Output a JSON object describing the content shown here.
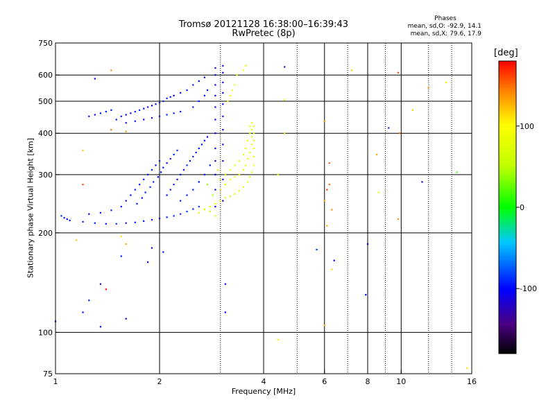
{
  "header": {
    "title": "Tromsø 20121128 16:38:00–16:39:43",
    "subtitle": "RwPretec (8p)",
    "stats_heading": "Phases",
    "stats_o": "mean, sd,O: -92.9, 14.1",
    "stats_x": "mean, sd,X:  79.6, 17.9"
  },
  "colorbar": {
    "unit": "[deg]",
    "range": [
      -180,
      180
    ],
    "ticks": [
      100,
      0,
      -100
    ],
    "tick_labels": [
      "100",
      "0",
      "-100"
    ]
  },
  "chart_data": {
    "type": "scatter",
    "title": "Tromsø 20121128 16:38:00–16:39:43",
    "subtitle": "RwPretec (8p)",
    "xlabel": "Frequency [MHz]",
    "ylabel": "Stationary phase Virtual Height [km]",
    "x_scale": "log",
    "y_scale": "log",
    "xlim": [
      1,
      16
    ],
    "ylim": [
      75,
      750
    ],
    "x_ticks": [
      1,
      2,
      4,
      6,
      8,
      10,
      16
    ],
    "x_tick_labels": [
      "1",
      "2",
      "4",
      "6",
      "8",
      "10",
      "16"
    ],
    "x_grid": [
      1,
      2,
      4,
      6,
      8,
      10,
      16
    ],
    "x_minor": [
      3,
      5,
      7,
      9,
      12,
      14
    ],
    "y_ticks": [
      75,
      100,
      200,
      300,
      400,
      500,
      600,
      750
    ],
    "y_tick_labels": [
      "75",
      "100",
      "200",
      "300",
      "400",
      "500",
      "600",
      "750"
    ],
    "y_grid": [
      100,
      200,
      300,
      400,
      500,
      600
    ],
    "grid": true,
    "color_encoding": "phase [deg], rainbow colour scale -180 to 180",
    "series": [
      {
        "mode": "O",
        "points": [
          [
            1.04,
            225,
            -95
          ],
          [
            1.06,
            222,
            -95
          ],
          [
            1.08,
            220,
            -100
          ],
          [
            1.1,
            218,
            -95
          ],
          [
            1.2,
            216,
            -95
          ],
          [
            1.3,
            214,
            -95
          ],
          [
            1.4,
            213,
            -95
          ],
          [
            1.5,
            213,
            -90
          ],
          [
            1.6,
            214,
            -95
          ],
          [
            1.7,
            215,
            -95
          ],
          [
            1.8,
            217,
            -95
          ],
          [
            1.9,
            219,
            -95
          ],
          [
            2.0,
            221,
            -95
          ],
          [
            2.1,
            223,
            -95
          ],
          [
            2.2,
            225,
            -90
          ],
          [
            2.3,
            228,
            -90
          ],
          [
            2.4,
            232,
            -85
          ],
          [
            2.5,
            236,
            -90
          ],
          [
            2.6,
            240,
            -85
          ],
          [
            1.25,
            228,
            -100
          ],
          [
            1.35,
            230,
            -95
          ],
          [
            1.45,
            234,
            -90
          ],
          [
            1.55,
            240,
            -95
          ],
          [
            1.6,
            250,
            -100
          ],
          [
            1.65,
            260,
            -95
          ],
          [
            1.7,
            270,
            -95
          ],
          [
            1.75,
            280,
            -100
          ],
          [
            1.8,
            290,
            -95
          ],
          [
            1.85,
            300,
            -95
          ],
          [
            1.9,
            310,
            -90
          ],
          [
            1.95,
            320,
            -100
          ],
          [
            2.0,
            330,
            -95
          ],
          [
            1.72,
            245,
            -95
          ],
          [
            1.78,
            255,
            -100
          ],
          [
            1.82,
            265,
            -95
          ],
          [
            1.88,
            275,
            -90
          ],
          [
            1.92,
            285,
            -95
          ],
          [
            1.98,
            295,
            -100
          ],
          [
            2.02,
            305,
            -95
          ],
          [
            2.05,
            315,
            -95
          ],
          [
            2.1,
            325,
            -100
          ],
          [
            2.15,
            335,
            -95
          ],
          [
            2.2,
            345,
            -95
          ],
          [
            2.25,
            355,
            -90
          ],
          [
            2.1,
            260,
            -100
          ],
          [
            2.15,
            270,
            -95
          ],
          [
            2.2,
            280,
            -95
          ],
          [
            2.25,
            290,
            -100
          ],
          [
            2.3,
            300,
            -95
          ],
          [
            2.35,
            310,
            -95
          ],
          [
            2.4,
            320,
            -90
          ],
          [
            2.45,
            330,
            -95
          ],
          [
            2.5,
            340,
            -95
          ],
          [
            2.55,
            350,
            -100
          ],
          [
            2.6,
            360,
            -95
          ],
          [
            2.65,
            370,
            -95
          ],
          [
            2.7,
            380,
            -95
          ],
          [
            2.75,
            390,
            -100
          ],
          [
            2.3,
            250,
            -95
          ],
          [
            2.4,
            260,
            -95
          ],
          [
            2.5,
            270,
            -95
          ],
          [
            2.6,
            285,
            -100
          ],
          [
            2.7,
            300,
            -95
          ],
          [
            2.8,
            320,
            -95
          ],
          [
            2.9,
            240,
            -100
          ],
          [
            2.9,
            270,
            -100
          ],
          [
            2.9,
            300,
            -100
          ],
          [
            2.9,
            330,
            -105
          ],
          [
            2.9,
            360,
            -100
          ],
          [
            2.9,
            400,
            -105
          ],
          [
            2.9,
            440,
            -100
          ],
          [
            2.9,
            480,
            -105
          ],
          [
            2.9,
            520,
            -100
          ],
          [
            2.9,
            560,
            -105
          ],
          [
            2.9,
            600,
            -100
          ],
          [
            2.9,
            630,
            -105
          ],
          [
            3.05,
            250,
            -110
          ],
          [
            3.05,
            290,
            -110
          ],
          [
            3.05,
            330,
            -115
          ],
          [
            3.05,
            370,
            -110
          ],
          [
            3.05,
            410,
            -110
          ],
          [
            3.05,
            450,
            -115
          ],
          [
            3.05,
            490,
            -110
          ],
          [
            3.05,
            530,
            -110
          ],
          [
            3.05,
            570,
            -115
          ],
          [
            3.05,
            610,
            -110
          ],
          [
            3.05,
            640,
            -110
          ],
          [
            1.5,
            440,
            -95
          ],
          [
            1.55,
            450,
            -95
          ],
          [
            1.6,
            455,
            -100
          ],
          [
            1.65,
            460,
            -95
          ],
          [
            1.7,
            465,
            -95
          ],
          [
            1.75,
            470,
            -90
          ],
          [
            1.8,
            475,
            -95
          ],
          [
            1.85,
            480,
            -95
          ],
          [
            1.9,
            485,
            -100
          ],
          [
            1.95,
            490,
            -95
          ],
          [
            2.0,
            495,
            -95
          ],
          [
            2.05,
            500,
            -90
          ],
          [
            2.1,
            510,
            -95
          ],
          [
            2.15,
            515,
            -95
          ],
          [
            2.2,
            520,
            -100
          ],
          [
            2.3,
            530,
            -95
          ],
          [
            2.4,
            540,
            -95
          ],
          [
            2.5,
            560,
            -95
          ],
          [
            2.6,
            575,
            -100
          ],
          [
            2.7,
            590,
            -95
          ],
          [
            1.6,
            430,
            -95
          ],
          [
            1.7,
            435,
            -95
          ],
          [
            1.8,
            440,
            -100
          ],
          [
            1.9,
            445,
            -95
          ],
          [
            2.0,
            450,
            -95
          ],
          [
            2.1,
            455,
            -90
          ],
          [
            2.2,
            460,
            -95
          ],
          [
            2.3,
            465,
            -95
          ],
          [
            1.25,
            450,
            -95
          ],
          [
            1.3,
            455,
            -100
          ],
          [
            1.35,
            460,
            -95
          ],
          [
            1.4,
            465,
            -95
          ],
          [
            1.45,
            470,
            -95
          ],
          [
            2.5,
            480,
            -95
          ],
          [
            2.6,
            500,
            -95
          ],
          [
            2.7,
            520,
            -100
          ],
          [
            2.75,
            540,
            -95
          ],
          [
            1.3,
            585,
            -105
          ],
          [
            1.45,
            410,
            -100
          ],
          [
            1.55,
            170,
            -95
          ],
          [
            1.6,
            110,
            -110
          ],
          [
            1.35,
            140,
            -120
          ],
          [
            1.2,
            115,
            -100
          ],
          [
            1.25,
            125,
            -95
          ],
          [
            1.35,
            104,
            -100
          ],
          [
            1.9,
            180,
            -110
          ],
          [
            1.85,
            163,
            -110
          ],
          [
            2.05,
            175,
            -95
          ],
          [
            5.7,
            178,
            -90
          ],
          [
            6.4,
            165,
            -100
          ],
          [
            8.0,
            185,
            -110
          ],
          [
            7.9,
            130,
            -100
          ],
          [
            9.2,
            415,
            -90
          ],
          [
            11.5,
            285,
            -105
          ],
          [
            4.6,
            635,
            -110
          ],
          [
            1.0,
            108,
            -95
          ],
          [
            3.1,
            115,
            -100
          ],
          [
            3.1,
            140,
            -100
          ]
        ]
      },
      {
        "mode": "X",
        "points": [
          [
            2.6,
            230,
            75
          ],
          [
            2.7,
            235,
            80
          ],
          [
            2.8,
            240,
            75
          ],
          [
            2.9,
            245,
            80
          ],
          [
            3.0,
            250,
            85
          ],
          [
            3.1,
            255,
            80
          ],
          [
            3.2,
            258,
            75
          ],
          [
            3.3,
            262,
            80
          ],
          [
            3.4,
            268,
            85
          ],
          [
            3.5,
            275,
            80
          ],
          [
            3.6,
            285,
            80
          ],
          [
            3.65,
            295,
            75
          ],
          [
            3.7,
            305,
            80
          ],
          [
            3.75,
            320,
            85
          ],
          [
            3.75,
            340,
            80
          ],
          [
            3.75,
            360,
            80
          ],
          [
            3.75,
            380,
            75
          ],
          [
            3.75,
            400,
            80
          ],
          [
            3.75,
            420,
            85
          ],
          [
            3.0,
            270,
            80
          ],
          [
            3.1,
            280,
            75
          ],
          [
            3.2,
            290,
            80
          ],
          [
            3.3,
            295,
            80
          ],
          [
            3.4,
            300,
            85
          ],
          [
            3.5,
            310,
            80
          ],
          [
            3.55,
            320,
            75
          ],
          [
            3.6,
            335,
            80
          ],
          [
            3.65,
            350,
            85
          ],
          [
            3.7,
            370,
            80
          ],
          [
            3.7,
            390,
            75
          ],
          [
            3.7,
            410,
            80
          ],
          [
            3.7,
            430,
            80
          ],
          [
            3.1,
            300,
            80
          ],
          [
            3.2,
            310,
            85
          ],
          [
            3.3,
            320,
            80
          ],
          [
            3.4,
            330,
            75
          ],
          [
            3.5,
            345,
            80
          ],
          [
            3.55,
            360,
            80
          ],
          [
            3.6,
            380,
            85
          ],
          [
            3.65,
            400,
            80
          ],
          [
            3.65,
            420,
            75
          ],
          [
            3.15,
            500,
            90
          ],
          [
            3.2,
            520,
            85
          ],
          [
            3.25,
            540,
            90
          ],
          [
            3.3,
            560,
            85
          ],
          [
            3.35,
            600,
            80
          ],
          [
            3.5,
            620,
            90
          ],
          [
            3.55,
            640,
            90
          ],
          [
            2.9,
            225,
            60
          ],
          [
            2.8,
            232,
            65
          ],
          [
            2.7,
            236,
            70
          ],
          [
            2.85,
            260,
            45
          ],
          [
            3.0,
            290,
            50
          ],
          [
            2.95,
            310,
            55
          ],
          [
            2.75,
            280,
            40
          ],
          [
            1.45,
            620,
            140
          ],
          [
            1.45,
            410,
            140
          ],
          [
            1.6,
            405,
            140
          ],
          [
            1.2,
            355,
            120
          ],
          [
            1.2,
            280,
            160
          ],
          [
            1.15,
            190,
            120
          ],
          [
            1.55,
            195,
            110
          ],
          [
            1.6,
            185,
            130
          ],
          [
            1.4,
            135,
            175
          ],
          [
            4.4,
            95,
            105
          ],
          [
            4.6,
            505,
            80
          ],
          [
            4.6,
            400,
            110
          ],
          [
            6.0,
            435,
            140
          ],
          [
            6.0,
            250,
            130
          ],
          [
            6.1,
            270,
            165
          ],
          [
            6.2,
            325,
            155
          ],
          [
            6.3,
            155,
            115
          ],
          [
            6.0,
            105,
            130
          ],
          [
            7.2,
            620,
            120
          ],
          [
            8.5,
            345,
            130
          ],
          [
            9.8,
            610,
            160
          ],
          [
            9.9,
            400,
            150
          ],
          [
            9.8,
            220,
            140
          ],
          [
            10.8,
            470,
            120
          ],
          [
            12.0,
            550,
            135
          ],
          [
            13.5,
            570,
            110
          ],
          [
            15.5,
            78,
            110
          ],
          [
            6.1,
            210,
            130
          ],
          [
            6.3,
            235,
            140
          ],
          [
            6.2,
            280,
            150
          ],
          [
            8.6,
            265,
            70
          ],
          [
            14.5,
            305,
            20
          ],
          [
            4.4,
            300,
            90
          ]
        ]
      }
    ]
  }
}
